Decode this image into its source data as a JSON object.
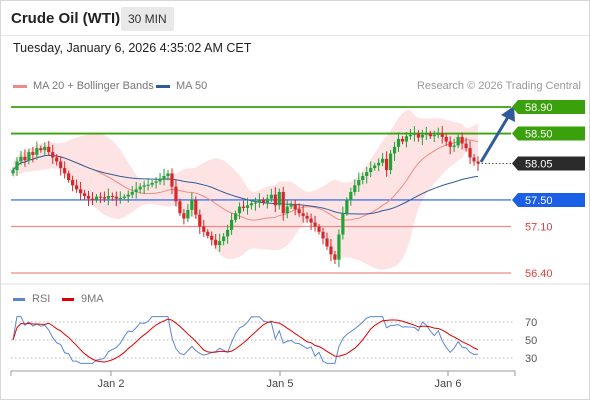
{
  "header": {
    "instrument": "Crude Oil (WTI)",
    "timeframe": "30 MIN",
    "timestamp": "Tuesday, January 6, 2026 4:35:02 AM CET"
  },
  "legend": {
    "items": [
      {
        "label": "MA 20 + Bollinger Bands",
        "color": "#f08a84"
      },
      {
        "label": "MA 50",
        "color": "#2f5b9a"
      }
    ],
    "credit": "Research © 2026 Trading Central"
  },
  "colors": {
    "bull": "#21a33a",
    "bear": "#d6272a",
    "target_green": "#3aa10c",
    "pivot_blue": "#1b5fe6",
    "support_red": "#f08a84",
    "band_fill": "#fde3e3",
    "arrow": "#2f5b9a",
    "price_badge": "#2b2b2b",
    "rsi": "#5b86d6",
    "rsi_ma": "#e00000"
  },
  "chart_data": [
    {
      "type": "candlestick",
      "title": "Crude Oil (WTI)",
      "interval": "30 MIN",
      "x_ticks": [
        "Jan 2",
        "Jan 5",
        "Jan 6"
      ],
      "ylim": [
        56.2,
        59.0
      ],
      "grid": false,
      "close": [
        57.95,
        58.08,
        58.15,
        58.1,
        58.22,
        58.18,
        58.28,
        58.25,
        58.3,
        58.22,
        58.14,
        58.08,
        57.98,
        57.9,
        57.8,
        57.72,
        57.66,
        57.6,
        57.56,
        57.52,
        57.5,
        57.55,
        57.54,
        57.52,
        57.56,
        57.55,
        57.52,
        57.53,
        57.55,
        57.58,
        57.62,
        57.66,
        57.7,
        57.72,
        57.73,
        57.76,
        57.78,
        57.82,
        57.86,
        57.9,
        57.7,
        57.48,
        57.3,
        57.22,
        57.35,
        57.5,
        57.28,
        57.1,
        57.02,
        56.96,
        56.9,
        56.82,
        56.88,
        56.95,
        57.05,
        57.2,
        57.3,
        57.4,
        57.38,
        57.42,
        57.45,
        57.46,
        57.5,
        57.46,
        57.52,
        57.58,
        57.42,
        57.62,
        57.3,
        57.4,
        57.44,
        57.36,
        57.3,
        57.26,
        57.22,
        57.16,
        57.1,
        57.02,
        56.92,
        56.8,
        56.68,
        56.6,
        56.98,
        57.3,
        57.5,
        57.62,
        57.72,
        57.8,
        57.86,
        57.92,
        57.98,
        58.02,
        58.06,
        58.12,
        57.95,
        58.2,
        58.3,
        58.42,
        58.38,
        58.46,
        58.48,
        58.5,
        58.44,
        58.48,
        58.5,
        58.46,
        58.48,
        58.5,
        58.45,
        58.38,
        58.3,
        58.32,
        58.45,
        58.35,
        58.28,
        58.14,
        58.08,
        58.05
      ],
      "indicators": {
        "MA 20 + Bollinger Bands": "moving average with upper and lower bands",
        "MA 50": "moving average"
      },
      "levels": [
        {
          "value": 58.9,
          "label": "58.90",
          "kind": "target"
        },
        {
          "value": 58.5,
          "label": "58.50",
          "kind": "target"
        },
        {
          "value": 58.05,
          "label": "58.05",
          "kind": "last price"
        },
        {
          "value": 57.5,
          "label": "57.50",
          "kind": "pivot"
        },
        {
          "value": 57.1,
          "label": "57.10",
          "kind": "support"
        },
        {
          "value": 56.4,
          "label": "56.40",
          "kind": "support"
        }
      ]
    },
    {
      "type": "line",
      "series": [
        {
          "name": "RSI"
        },
        {
          "name": "9MA"
        }
      ],
      "ylim": [
        20,
        80
      ],
      "y_ticks": [
        70,
        50,
        30
      ],
      "reference_lines": [
        70,
        50,
        30
      ]
    }
  ]
}
